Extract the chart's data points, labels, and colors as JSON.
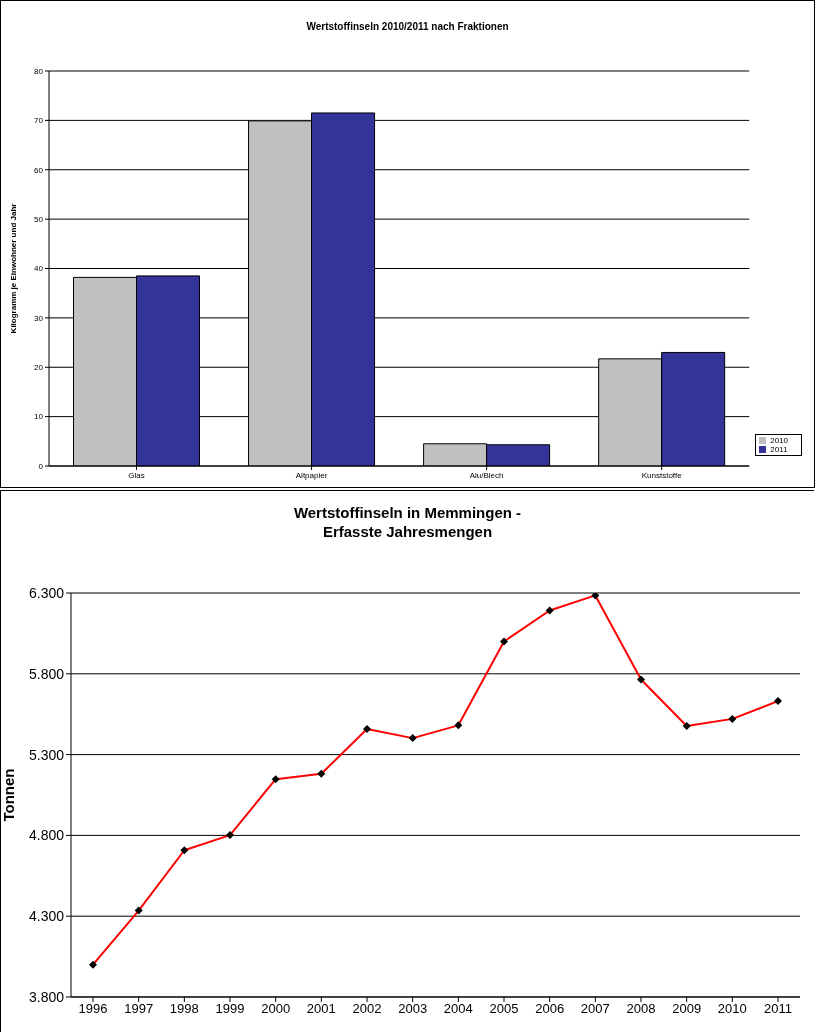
{
  "chart_data": [
    {
      "type": "bar",
      "title": "Wertstoffinseln 2010/2011 nach Fraktionen",
      "ylabel": "Kilogramm je Einwohner und Jahr",
      "categories": [
        "Glas",
        "Altpapier",
        "Alu/Blech",
        "Kunststoffe"
      ],
      "series": [
        {
          "name": "2010",
          "color": "#c0c0c0",
          "values": [
            38.2,
            69.9,
            4.5,
            21.7
          ]
        },
        {
          "name": "2011",
          "color": "#333399",
          "values": [
            38.5,
            71.5,
            4.3,
            23.0
          ]
        }
      ],
      "ylim": [
        0,
        80
      ],
      "yticks": [
        0,
        10,
        20,
        30,
        40,
        50,
        60,
        70,
        80
      ],
      "grid": "y",
      "legend": "right"
    },
    {
      "type": "line",
      "title": "Wertstoffinseln in Memmingen -\nErfasste Jahresmengen",
      "ylabel": "Tonnen",
      "categories": [
        "1996",
        "1997",
        "1998",
        "1999",
        "2000",
        "2001",
        "2002",
        "2003",
        "2004",
        "2005",
        "2006",
        "2007",
        "2008",
        "2009",
        "2010",
        "2011"
      ],
      "series": [
        {
          "color": "#ff0000",
          "values": [
            4000,
            4335,
            4708,
            4802,
            5148,
            5181,
            5458,
            5402,
            5481,
            6000,
            6192,
            6285,
            5765,
            5477,
            5521,
            5631
          ]
        }
      ],
      "ylim": [
        3800,
        6300
      ],
      "yticks": [
        {
          "value": 3800,
          "label": "3.800"
        },
        {
          "value": 4300,
          "label": "4.300"
        },
        {
          "value": 4800,
          "label": "4.800"
        },
        {
          "value": 5300,
          "label": "5.300"
        },
        {
          "value": 5800,
          "label": "5.800"
        },
        {
          "value": 6300,
          "label": "6.300"
        }
      ],
      "grid": "y",
      "legend": false,
      "marker": "diamond",
      "line_style": "solid"
    }
  ]
}
